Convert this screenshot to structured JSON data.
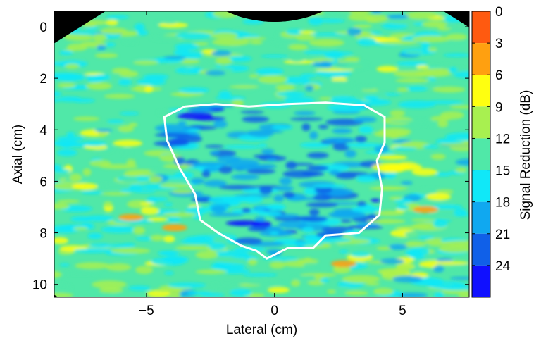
{
  "chart_data": {
    "type": "heatmap",
    "title": "",
    "xlabel": "Lateral (cm)",
    "ylabel": "Axial (cm)",
    "xlim": [
      -8.6,
      7.6
    ],
    "ylim": [
      10.5,
      -0.6
    ],
    "x_ticks": [
      "−5",
      "0",
      "5"
    ],
    "x_tick_values": [
      -5,
      0,
      5
    ],
    "y_ticks": [
      "0",
      "2",
      "4",
      "6",
      "8",
      "10"
    ],
    "y_tick_values": [
      0,
      2,
      4,
      6,
      8,
      10
    ],
    "colorbar": {
      "label": "Signal Reduction (dB)",
      "range": [
        0,
        27
      ],
      "tick_labels": [
        "0",
        "3",
        "6",
        "9",
        "12",
        "15",
        "18",
        "21",
        "24"
      ],
      "tick_values": [
        0,
        3,
        6,
        9,
        12,
        15,
        18,
        21,
        24
      ],
      "levels": [
        {
          "range": [
            0,
            3
          ],
          "color": "#ff5a10"
        },
        {
          "range": [
            3,
            6
          ],
          "color": "#ffa010"
        },
        {
          "range": [
            6,
            9
          ],
          "color": "#ffff10"
        },
        {
          "range": [
            9,
            12
          ],
          "color": "#a8f050"
        },
        {
          "range": [
            12,
            15
          ],
          "color": "#50e8a8"
        },
        {
          "range": [
            15,
            18
          ],
          "color": "#10e8f8"
        },
        {
          "range": [
            18,
            21
          ],
          "color": "#10a8f0"
        },
        {
          "range": [
            21,
            24
          ],
          "color": "#1060e8"
        },
        {
          "range": [
            24,
            27
          ],
          "color": "#1010ff"
        }
      ]
    },
    "background_color": "#000000",
    "region_outline_color": "#ffffff",
    "region_outline": [
      [
        -4.3,
        3.5
      ],
      [
        -3.5,
        3.1
      ],
      [
        -2.3,
        3.0
      ],
      [
        -1.0,
        3.1
      ],
      [
        0.5,
        3.0
      ],
      [
        2.0,
        2.95
      ],
      [
        3.5,
        3.05
      ],
      [
        4.3,
        3.5
      ],
      [
        4.3,
        4.5
      ],
      [
        4.0,
        5.2
      ],
      [
        4.2,
        6.3
      ],
      [
        4.1,
        7.3
      ],
      [
        3.3,
        8.0
      ],
      [
        2.0,
        8.1
      ],
      [
        1.5,
        8.6
      ],
      [
        0.5,
        8.6
      ],
      [
        -0.3,
        9.0
      ],
      [
        -0.7,
        8.7
      ],
      [
        -1.3,
        8.5
      ],
      [
        -2.2,
        8.0
      ],
      [
        -2.9,
        7.5
      ],
      [
        -3.1,
        6.5
      ],
      [
        -3.7,
        5.5
      ],
      [
        -4.2,
        4.4
      ],
      [
        -4.3,
        3.5
      ]
    ]
  }
}
